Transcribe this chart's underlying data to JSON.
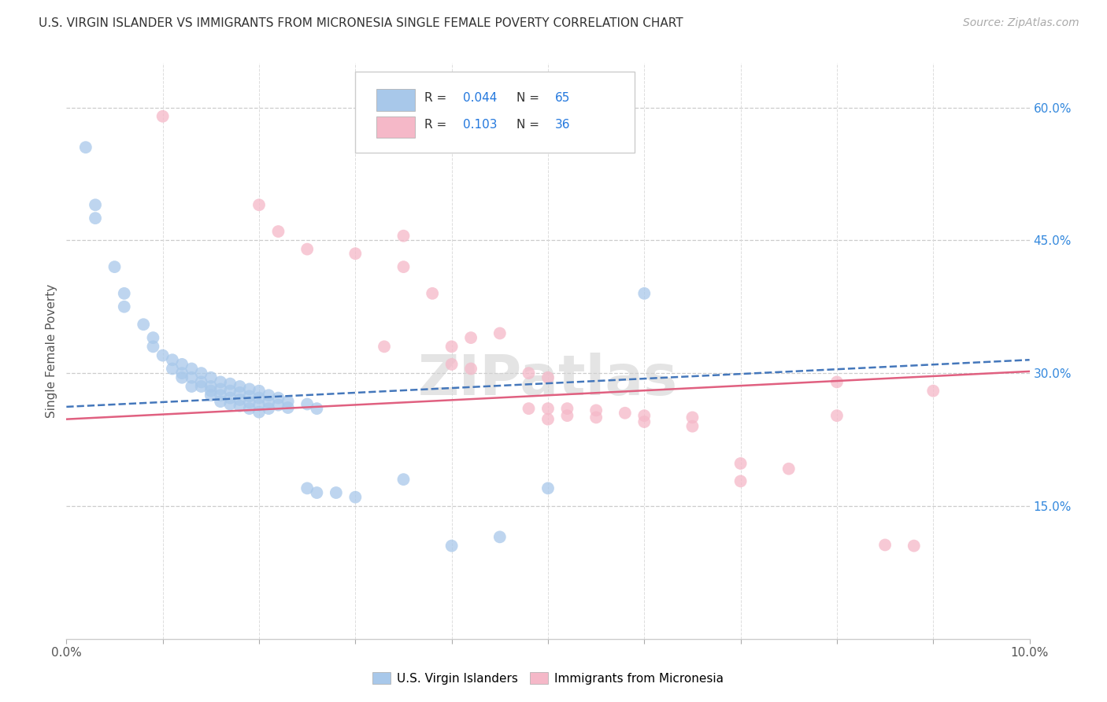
{
  "title": "U.S. VIRGIN ISLANDER VS IMMIGRANTS FROM MICRONESIA SINGLE FEMALE POVERTY CORRELATION CHART",
  "source": "Source: ZipAtlas.com",
  "ylabel": "Single Female Poverty",
  "xlim": [
    0.0,
    0.1
  ],
  "ylim": [
    0.0,
    0.65
  ],
  "color_blue": "#a8c8ea",
  "color_pink": "#f5b8c8",
  "trendline_blue_color": "#4477bb",
  "trendline_pink_color": "#e06080",
  "watermark": "ZIPatlas",
  "blue_scatter": [
    [
      0.002,
      0.555
    ],
    [
      0.003,
      0.49
    ],
    [
      0.003,
      0.475
    ],
    [
      0.005,
      0.42
    ],
    [
      0.006,
      0.39
    ],
    [
      0.006,
      0.375
    ],
    [
      0.008,
      0.355
    ],
    [
      0.009,
      0.34
    ],
    [
      0.009,
      0.33
    ],
    [
      0.01,
      0.32
    ],
    [
      0.011,
      0.315
    ],
    [
      0.011,
      0.305
    ],
    [
      0.012,
      0.31
    ],
    [
      0.012,
      0.3
    ],
    [
      0.012,
      0.295
    ],
    [
      0.013,
      0.305
    ],
    [
      0.013,
      0.295
    ],
    [
      0.013,
      0.285
    ],
    [
      0.014,
      0.3
    ],
    [
      0.014,
      0.29
    ],
    [
      0.014,
      0.285
    ],
    [
      0.015,
      0.295
    ],
    [
      0.015,
      0.285
    ],
    [
      0.015,
      0.28
    ],
    [
      0.015,
      0.275
    ],
    [
      0.016,
      0.29
    ],
    [
      0.016,
      0.282
    ],
    [
      0.016,
      0.275
    ],
    [
      0.016,
      0.268
    ],
    [
      0.017,
      0.288
    ],
    [
      0.017,
      0.28
    ],
    [
      0.017,
      0.272
    ],
    [
      0.017,
      0.265
    ],
    [
      0.018,
      0.285
    ],
    [
      0.018,
      0.278
    ],
    [
      0.018,
      0.27
    ],
    [
      0.018,
      0.263
    ],
    [
      0.019,
      0.282
    ],
    [
      0.019,
      0.274
    ],
    [
      0.019,
      0.267
    ],
    [
      0.019,
      0.26
    ],
    [
      0.02,
      0.28
    ],
    [
      0.02,
      0.272
    ],
    [
      0.02,
      0.264
    ],
    [
      0.02,
      0.256
    ],
    [
      0.021,
      0.275
    ],
    [
      0.021,
      0.267
    ],
    [
      0.021,
      0.26
    ],
    [
      0.022,
      0.272
    ],
    [
      0.022,
      0.264
    ],
    [
      0.023,
      0.268
    ],
    [
      0.023,
      0.261
    ],
    [
      0.025,
      0.265
    ],
    [
      0.025,
      0.17
    ],
    [
      0.026,
      0.26
    ],
    [
      0.026,
      0.165
    ],
    [
      0.028,
      0.165
    ],
    [
      0.03,
      0.16
    ],
    [
      0.035,
      0.18
    ],
    [
      0.04,
      0.105
    ],
    [
      0.045,
      0.115
    ],
    [
      0.05,
      0.17
    ],
    [
      0.06,
      0.39
    ]
  ],
  "pink_scatter": [
    [
      0.01,
      0.59
    ],
    [
      0.02,
      0.49
    ],
    [
      0.022,
      0.46
    ],
    [
      0.025,
      0.44
    ],
    [
      0.03,
      0.435
    ],
    [
      0.033,
      0.33
    ],
    [
      0.035,
      0.455
    ],
    [
      0.035,
      0.42
    ],
    [
      0.038,
      0.39
    ],
    [
      0.04,
      0.33
    ],
    [
      0.04,
      0.31
    ],
    [
      0.042,
      0.34
    ],
    [
      0.042,
      0.305
    ],
    [
      0.045,
      0.345
    ],
    [
      0.048,
      0.3
    ],
    [
      0.048,
      0.26
    ],
    [
      0.05,
      0.295
    ],
    [
      0.05,
      0.26
    ],
    [
      0.05,
      0.248
    ],
    [
      0.052,
      0.26
    ],
    [
      0.052,
      0.252
    ],
    [
      0.055,
      0.258
    ],
    [
      0.055,
      0.25
    ],
    [
      0.058,
      0.255
    ],
    [
      0.06,
      0.252
    ],
    [
      0.06,
      0.245
    ],
    [
      0.065,
      0.25
    ],
    [
      0.065,
      0.24
    ],
    [
      0.07,
      0.198
    ],
    [
      0.07,
      0.178
    ],
    [
      0.075,
      0.192
    ],
    [
      0.08,
      0.29
    ],
    [
      0.08,
      0.252
    ],
    [
      0.085,
      0.106
    ],
    [
      0.088,
      0.105
    ],
    [
      0.09,
      0.28
    ]
  ]
}
